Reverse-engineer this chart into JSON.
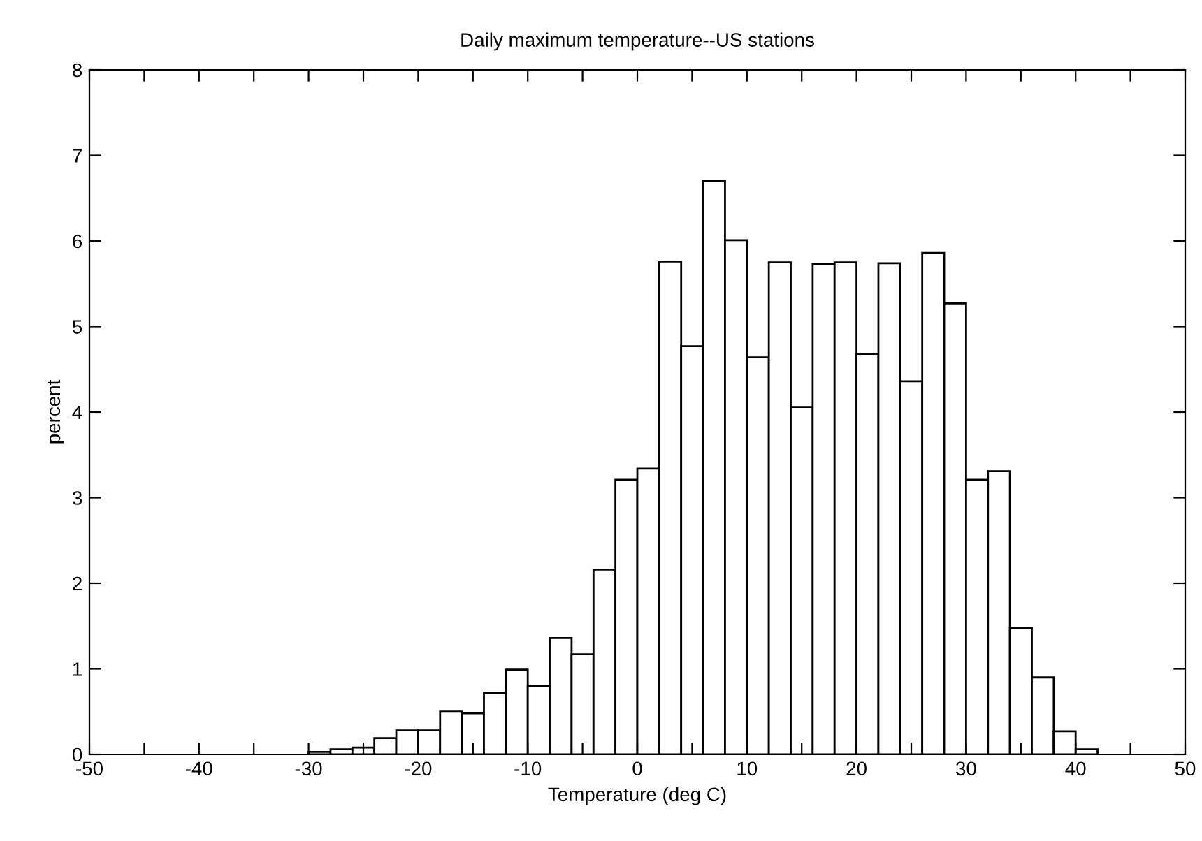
{
  "chart_data": {
    "type": "histogram",
    "title": "Daily maximum temperature--US stations",
    "xlabel": "Temperature (deg C)",
    "ylabel": "percent",
    "bins": [
      -32,
      -30,
      -28,
      -26,
      -24,
      -22,
      -20,
      -18,
      -16,
      -14,
      -12,
      -10,
      -8,
      -6,
      -4,
      -2,
      0,
      2,
      4,
      6,
      8,
      10,
      12,
      14,
      16,
      18,
      20,
      22,
      24,
      26,
      28,
      30,
      32,
      34,
      36,
      38,
      40,
      42
    ],
    "values": [
      null,
      0.03,
      0.06,
      0.08,
      0.19,
      0.28,
      0.28,
      0.5,
      0.48,
      0.72,
      0.99,
      0.8,
      1.36,
      1.17,
      2.16,
      3.21,
      3.34,
      5.76,
      4.77,
      6.7,
      6.01,
      4.64,
      5.75,
      4.06,
      5.73,
      5.75,
      4.68,
      5.74,
      4.36,
      5.86,
      5.27,
      3.21,
      3.31,
      1.48,
      0.9,
      0.27,
      0.06
    ],
    "color": "#ffffff",
    "xlim": [
      -50,
      50
    ],
    "xticks": [
      -50,
      {
        "value": -45,
        "label": null
      },
      -40,
      {
        "value": -35,
        "label": null
      },
      -30,
      {
        "value": -25,
        "label": null
      },
      -20,
      {
        "value": -15,
        "label": null
      },
      -10,
      {
        "value": -5,
        "label": null
      },
      0,
      {
        "value": 5,
        "label": null
      },
      10,
      {
        "value": 15,
        "label": null
      },
      20,
      {
        "value": 25,
        "label": null
      },
      30,
      {
        "value": 35,
        "label": null
      },
      40,
      {
        "value": 45,
        "label": null
      },
      50
    ],
    "ylim": [
      0,
      8
    ],
    "yticks": [
      0,
      1,
      2,
      3,
      4,
      5,
      6,
      7,
      8
    ],
    "grid": false,
    "legend": false
  }
}
